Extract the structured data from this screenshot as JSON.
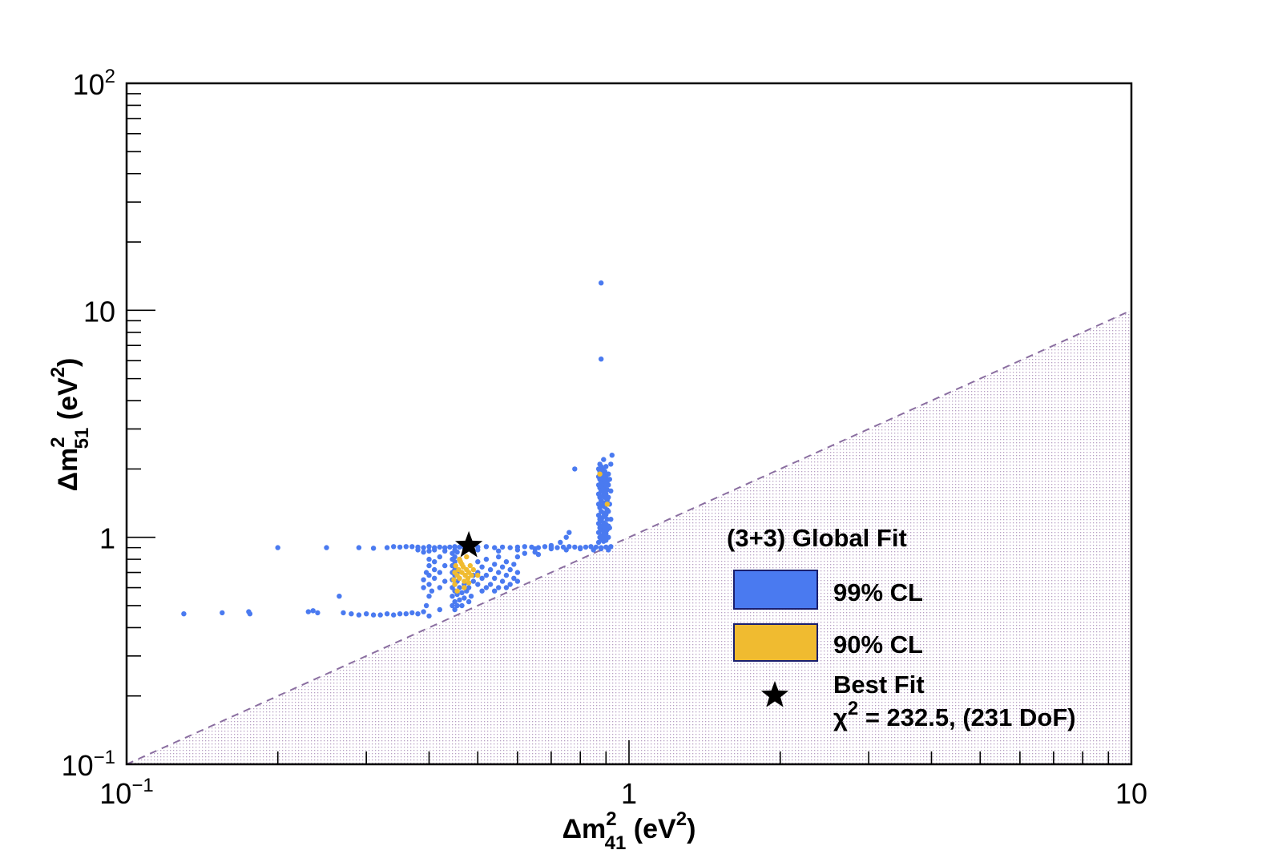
{
  "chart_data": {
    "type": "scatter",
    "x_scale": "log",
    "y_scale": "log",
    "xlim": [
      0.1,
      10
    ],
    "ylim": [
      0.1,
      100
    ],
    "x_ticks": [
      {
        "value": 0.1,
        "base": "10",
        "exp": "−1"
      },
      {
        "value": 1,
        "base": "1",
        "exp": ""
      },
      {
        "value": 10,
        "base": "10",
        "exp": ""
      }
    ],
    "y_ticks": [
      {
        "value": 0.1,
        "base": "10",
        "exp": "−1"
      },
      {
        "value": 1,
        "base": "1",
        "exp": ""
      },
      {
        "value": 10,
        "base": "10",
        "exp": ""
      },
      {
        "value": 100,
        "base": "10",
        "exp": "2"
      }
    ],
    "xlabel": {
      "main": "Δm",
      "sup": "2",
      "sub": "41",
      "unit": " (eV",
      "unit_sup": "2",
      "unit_end": ")"
    },
    "ylabel": {
      "main": "Δm",
      "sup": "2",
      "sub": "51",
      "unit": " (eV",
      "unit_sup": "2",
      "unit_end": ")"
    },
    "grid": false,
    "excluded_region": {
      "boundary": "y = x",
      "style": "dashed line, dotted fill below"
    },
    "legend": {
      "placement": "bottom-right",
      "title": "(3+3) Global Fit",
      "entries": [
        {
          "label": "99% CL",
          "color": "#4a7af0"
        },
        {
          "label": "90% CL",
          "color": "#f0bb30"
        }
      ],
      "best_fit_label": "Best Fit",
      "chi2_symbol": "χ",
      "chi2_sup": "2",
      "chi2_text": " = 232.5, (231 DoF)"
    },
    "best_fit": {
      "x": 0.48,
      "y": 0.92
    },
    "series": [
      {
        "name": "99% CL",
        "color": "#4a7af0",
        "points": [
          [
            0.13,
            0.46
          ],
          [
            0.155,
            0.465
          ],
          [
            0.175,
            0.47
          ],
          [
            0.176,
            0.46
          ],
          [
            0.2,
            0.9
          ],
          [
            0.23,
            0.47
          ],
          [
            0.235,
            0.475
          ],
          [
            0.24,
            0.465
          ],
          [
            0.25,
            0.9
          ],
          [
            0.265,
            0.55
          ],
          [
            0.27,
            0.465
          ],
          [
            0.28,
            0.46
          ],
          [
            0.29,
            0.455
          ],
          [
            0.3,
            0.46
          ],
          [
            0.31,
            0.455
          ],
          [
            0.32,
            0.455
          ],
          [
            0.33,
            0.46
          ],
          [
            0.34,
            0.455
          ],
          [
            0.35,
            0.46
          ],
          [
            0.36,
            0.46
          ],
          [
            0.37,
            0.465
          ],
          [
            0.38,
            0.46
          ],
          [
            0.39,
            0.47
          ],
          [
            0.395,
            0.5
          ],
          [
            0.4,
            0.45
          ],
          [
            0.42,
            0.48
          ],
          [
            0.29,
            0.9
          ],
          [
            0.31,
            0.895
          ],
          [
            0.33,
            0.9
          ],
          [
            0.34,
            0.91
          ],
          [
            0.35,
            0.905
          ],
          [
            0.36,
            0.91
          ],
          [
            0.37,
            0.91
          ],
          [
            0.38,
            0.905
          ],
          [
            0.39,
            0.9
          ],
          [
            0.4,
            0.91
          ],
          [
            0.41,
            0.9
          ],
          [
            0.42,
            0.905
          ],
          [
            0.43,
            0.9
          ],
          [
            0.44,
            0.905
          ],
          [
            0.45,
            0.91
          ],
          [
            0.46,
            0.905
          ],
          [
            0.47,
            0.9
          ],
          [
            0.5,
            0.905
          ],
          [
            0.52,
            0.91
          ],
          [
            0.54,
            0.9
          ],
          [
            0.56,
            0.905
          ],
          [
            0.58,
            0.9
          ],
          [
            0.6,
            0.905
          ],
          [
            0.62,
            0.91
          ],
          [
            0.64,
            0.905
          ],
          [
            0.66,
            0.9
          ],
          [
            0.68,
            0.91
          ],
          [
            0.7,
            0.905
          ],
          [
            0.72,
            0.9
          ],
          [
            0.74,
            0.905
          ],
          [
            0.76,
            0.91
          ],
          [
            0.78,
            0.905
          ],
          [
            0.8,
            0.9
          ],
          [
            0.82,
            0.905
          ],
          [
            0.84,
            0.91
          ],
          [
            0.86,
            0.905
          ],
          [
            0.88,
            0.9
          ],
          [
            0.9,
            0.905
          ],
          [
            0.92,
            0.91
          ],
          [
            0.38,
            0.88
          ],
          [
            0.39,
            0.86
          ],
          [
            0.4,
            0.87
          ],
          [
            0.41,
            0.88
          ],
          [
            0.43,
            0.87
          ],
          [
            0.45,
            0.88
          ],
          [
            0.5,
            0.88
          ],
          [
            0.55,
            0.87
          ],
          [
            0.6,
            0.88
          ],
          [
            0.65,
            0.89
          ],
          [
            0.7,
            0.89
          ],
          [
            0.75,
            0.88
          ],
          [
            0.8,
            0.89
          ],
          [
            0.85,
            0.88
          ],
          [
            0.88,
            0.89
          ],
          [
            0.91,
            0.88
          ],
          [
            0.39,
            0.6
          ],
          [
            0.39,
            0.65
          ],
          [
            0.395,
            0.7
          ],
          [
            0.4,
            0.55
          ],
          [
            0.4,
            0.62
          ],
          [
            0.4,
            0.68
          ],
          [
            0.4,
            0.75
          ],
          [
            0.4,
            0.8
          ],
          [
            0.405,
            0.58
          ],
          [
            0.41,
            0.66
          ],
          [
            0.41,
            0.72
          ],
          [
            0.41,
            0.78
          ],
          [
            0.42,
            0.6
          ],
          [
            0.42,
            0.7
          ],
          [
            0.42,
            0.82
          ],
          [
            0.43,
            0.64
          ],
          [
            0.43,
            0.75
          ],
          [
            0.445,
            0.5
          ],
          [
            0.445,
            0.55
          ],
          [
            0.445,
            0.6
          ],
          [
            0.445,
            0.65
          ],
          [
            0.445,
            0.7
          ],
          [
            0.445,
            0.75
          ],
          [
            0.445,
            0.8
          ],
          [
            0.445,
            0.85
          ],
          [
            0.45,
            0.48
          ],
          [
            0.45,
            0.52
          ],
          [
            0.45,
            0.58
          ],
          [
            0.45,
            0.62
          ],
          [
            0.45,
            0.68
          ],
          [
            0.45,
            0.72
          ],
          [
            0.45,
            0.78
          ],
          [
            0.45,
            0.82
          ],
          [
            0.455,
            0.5
          ],
          [
            0.455,
            0.56
          ],
          [
            0.455,
            0.64
          ],
          [
            0.455,
            0.7
          ],
          [
            0.455,
            0.86
          ],
          [
            0.46,
            0.53
          ],
          [
            0.46,
            0.6
          ],
          [
            0.46,
            0.66
          ],
          [
            0.46,
            0.8
          ],
          [
            0.465,
            0.5
          ],
          [
            0.465,
            0.57
          ],
          [
            0.47,
            0.54
          ],
          [
            0.47,
            0.62
          ],
          [
            0.475,
            0.58
          ],
          [
            0.48,
            0.52
          ],
          [
            0.48,
            0.6
          ],
          [
            0.485,
            0.55
          ],
          [
            0.49,
            0.64
          ],
          [
            0.49,
            0.68
          ],
          [
            0.5,
            0.62
          ],
          [
            0.5,
            0.7
          ],
          [
            0.5,
            0.78
          ],
          [
            0.51,
            0.58
          ],
          [
            0.51,
            0.66
          ],
          [
            0.51,
            0.74
          ],
          [
            0.52,
            0.6
          ],
          [
            0.52,
            0.68
          ],
          [
            0.52,
            0.8
          ],
          [
            0.53,
            0.62
          ],
          [
            0.53,
            0.72
          ],
          [
            0.54,
            0.58
          ],
          [
            0.54,
            0.66
          ],
          [
            0.54,
            0.76
          ],
          [
            0.55,
            0.6
          ],
          [
            0.55,
            0.7
          ],
          [
            0.55,
            0.82
          ],
          [
            0.56,
            0.64
          ],
          [
            0.56,
            0.74
          ],
          [
            0.57,
            0.6
          ],
          [
            0.57,
            0.68
          ],
          [
            0.57,
            0.78
          ],
          [
            0.58,
            0.62
          ],
          [
            0.58,
            0.72
          ],
          [
            0.59,
            0.66
          ],
          [
            0.59,
            0.76
          ],
          [
            0.6,
            0.7
          ],
          [
            0.6,
            0.64
          ],
          [
            0.6,
            0.82
          ],
          [
            0.62,
            0.85
          ],
          [
            0.65,
            0.86
          ],
          [
            0.66,
            0.84
          ],
          [
            0.7,
            0.92
          ],
          [
            0.73,
            0.95
          ],
          [
            0.75,
            1.0
          ],
          [
            0.76,
            1.05
          ],
          [
            0.78,
            2.0
          ],
          [
            0.87,
            0.95
          ],
          [
            0.87,
            1.05
          ],
          [
            0.87,
            1.15
          ],
          [
            0.87,
            1.25
          ],
          [
            0.87,
            1.4
          ],
          [
            0.87,
            1.55
          ],
          [
            0.87,
            1.7
          ],
          [
            0.87,
            1.85
          ],
          [
            0.87,
            2.0
          ],
          [
            0.875,
            1.0
          ],
          [
            0.875,
            1.1
          ],
          [
            0.875,
            1.2
          ],
          [
            0.875,
            1.35
          ],
          [
            0.875,
            1.5
          ],
          [
            0.875,
            1.65
          ],
          [
            0.875,
            1.8
          ],
          [
            0.875,
            1.95
          ],
          [
            0.875,
            2.1
          ],
          [
            0.88,
            0.98
          ],
          [
            0.88,
            1.08
          ],
          [
            0.88,
            1.18
          ],
          [
            0.88,
            1.3
          ],
          [
            0.88,
            1.45
          ],
          [
            0.88,
            1.6
          ],
          [
            0.88,
            1.75
          ],
          [
            0.88,
            1.9
          ],
          [
            0.88,
            2.05
          ],
          [
            0.885,
            1.02
          ],
          [
            0.885,
            1.12
          ],
          [
            0.885,
            1.22
          ],
          [
            0.885,
            1.38
          ],
          [
            0.885,
            1.52
          ],
          [
            0.885,
            1.68
          ],
          [
            0.885,
            1.82
          ],
          [
            0.885,
            2.0
          ],
          [
            0.89,
            0.96
          ],
          [
            0.89,
            1.06
          ],
          [
            0.89,
            1.16
          ],
          [
            0.89,
            1.28
          ],
          [
            0.89,
            1.42
          ],
          [
            0.89,
            1.58
          ],
          [
            0.89,
            1.72
          ],
          [
            0.89,
            1.88
          ],
          [
            0.89,
            2.2
          ],
          [
            0.895,
            1.0
          ],
          [
            0.895,
            1.1
          ],
          [
            0.895,
            1.24
          ],
          [
            0.895,
            1.36
          ],
          [
            0.895,
            1.5
          ],
          [
            0.895,
            1.64
          ],
          [
            0.895,
            1.78
          ],
          [
            0.895,
            1.95
          ],
          [
            0.9,
            0.97
          ],
          [
            0.9,
            1.04
          ],
          [
            0.9,
            1.14
          ],
          [
            0.9,
            1.26
          ],
          [
            0.9,
            1.4
          ],
          [
            0.9,
            1.55
          ],
          [
            0.9,
            1.7
          ],
          [
            0.9,
            1.84
          ],
          [
            0.9,
            2.05
          ],
          [
            0.905,
            1.08
          ],
          [
            0.905,
            1.2
          ],
          [
            0.905,
            1.32
          ],
          [
            0.905,
            1.46
          ],
          [
            0.905,
            1.62
          ],
          [
            0.905,
            1.76
          ],
          [
            0.91,
            1.0
          ],
          [
            0.91,
            1.12
          ],
          [
            0.91,
            1.3
          ],
          [
            0.91,
            1.5
          ],
          [
            0.91,
            1.7
          ],
          [
            0.91,
            1.9
          ],
          [
            0.915,
            1.1
          ],
          [
            0.915,
            1.4
          ],
          [
            0.915,
            1.8
          ],
          [
            0.92,
            1.2
          ],
          [
            0.92,
            1.6
          ],
          [
            0.92,
            2.1
          ],
          [
            0.925,
            2.3
          ],
          [
            0.88,
            6.1
          ],
          [
            0.88,
            13.2
          ]
        ]
      },
      {
        "name": "90% CL",
        "color": "#f0bb30",
        "points": [
          [
            0.448,
            0.65
          ],
          [
            0.45,
            0.7
          ],
          [
            0.452,
            0.75
          ],
          [
            0.455,
            0.68
          ],
          [
            0.458,
            0.72
          ],
          [
            0.46,
            0.66
          ],
          [
            0.462,
            0.78
          ],
          [
            0.465,
            0.7
          ],
          [
            0.468,
            0.74
          ],
          [
            0.47,
            0.64
          ],
          [
            0.472,
            0.68
          ],
          [
            0.475,
            0.72
          ],
          [
            0.478,
            0.66
          ],
          [
            0.48,
            0.7
          ],
          [
            0.483,
            0.75
          ],
          [
            0.486,
            0.68
          ],
          [
            0.45,
            0.62
          ],
          [
            0.46,
            0.8
          ],
          [
            0.47,
            0.6
          ],
          [
            0.475,
            0.82
          ],
          [
            0.48,
            0.63
          ],
          [
            0.49,
            0.72
          ],
          [
            0.5,
            0.68
          ],
          [
            0.455,
            0.58
          ],
          [
            0.465,
            0.76
          ],
          [
            0.875,
            1.9
          ],
          [
            0.905,
            1.4
          ]
        ]
      }
    ]
  }
}
